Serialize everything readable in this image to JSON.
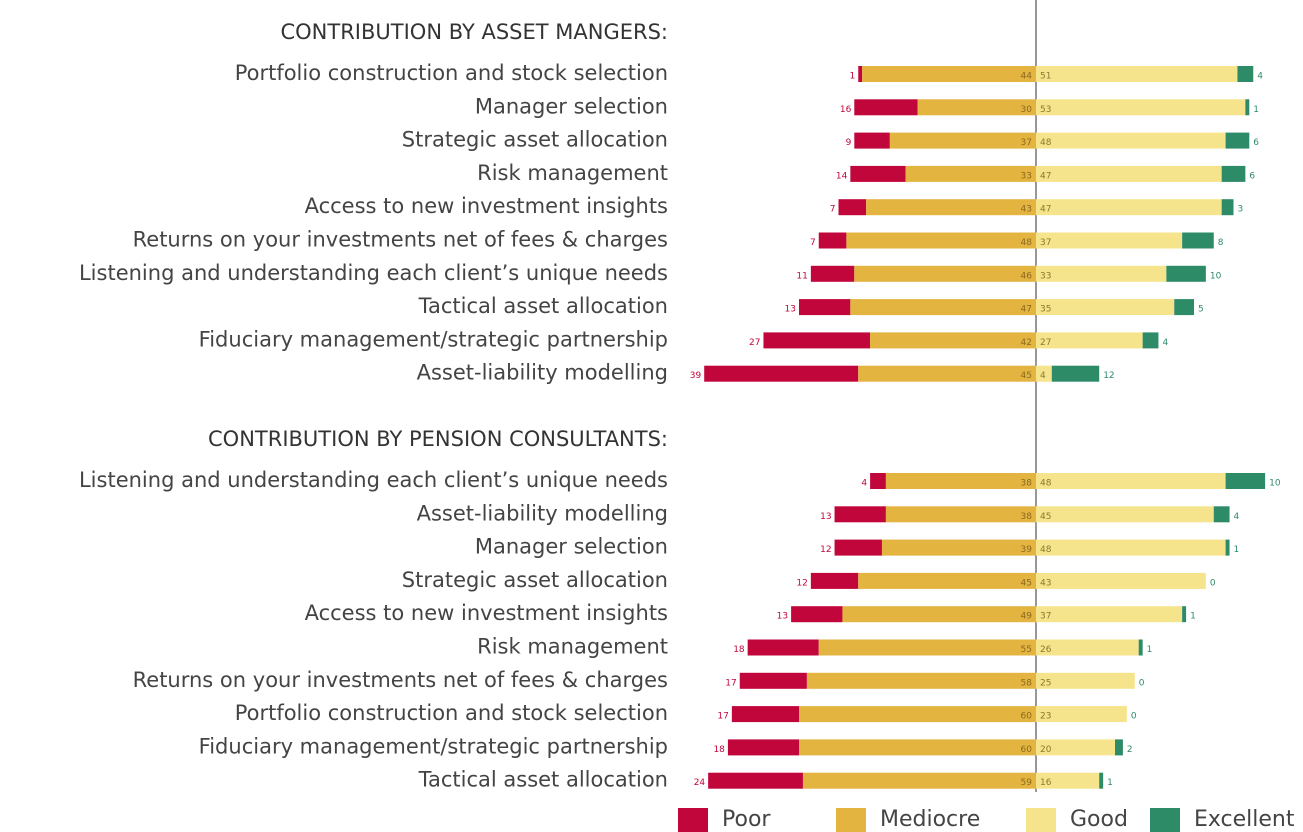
{
  "chart_data": {
    "type": "diverging_bar",
    "series": [
      {
        "name": "Poor",
        "color": "#c1063b"
      },
      {
        "name": "Mediocre",
        "color": "#e3b440"
      },
      {
        "name": "Good",
        "color": "#f5e48b"
      },
      {
        "name": "Excellent",
        "color": "#2e8b68"
      }
    ],
    "panels": [
      {
        "title": "CONTRIBUTION BY ASSET MANGERS:",
        "categories": [
          "Portfolio construction and stock selection",
          "Manager selection",
          "Strategic asset allocation",
          "Risk management",
          "Access to new investment insights",
          "Returns on your investments net of fees & charges",
          "Listening and understanding each client’s unique needs",
          "Tactical asset allocation",
          "Fiduciary management/strategic partnership",
          "Asset-liability modelling"
        ],
        "values": [
          [
            1,
            16,
            9,
            14,
            7,
            7,
            11,
            13,
            27,
            39
          ],
          [
            44,
            30,
            37,
            33,
            43,
            48,
            46,
            47,
            42,
            45
          ],
          [
            51,
            53,
            48,
            47,
            47,
            37,
            33,
            35,
            27,
            4
          ],
          [
            4,
            1,
            6,
            6,
            3,
            8,
            10,
            5,
            4,
            12
          ]
        ]
      },
      {
        "title": "CONTRIBUTION BY PENSION CONSULTANTS:",
        "categories": [
          "Listening and understanding each client’s unique needs",
          "Asset-liability modelling",
          "Manager selection",
          "Strategic asset allocation",
          "Access to new investment insights",
          "Risk management",
          "Returns on your investments net of fees & charges",
          "Portfolio construction and stock selection",
          "Fiduciary management/strategic partnership",
          "Tactical asset allocation"
        ],
        "values": [
          [
            4,
            13,
            12,
            12,
            13,
            18,
            17,
            17,
            18,
            24
          ],
          [
            38,
            38,
            39,
            45,
            49,
            55,
            58,
            60,
            60,
            59
          ],
          [
            48,
            45,
            48,
            43,
            37,
            26,
            25,
            23,
            20,
            16
          ],
          [
            10,
            4,
            1,
            0,
            1,
            1,
            0,
            0,
            2,
            1
          ]
        ]
      }
    ]
  }
}
